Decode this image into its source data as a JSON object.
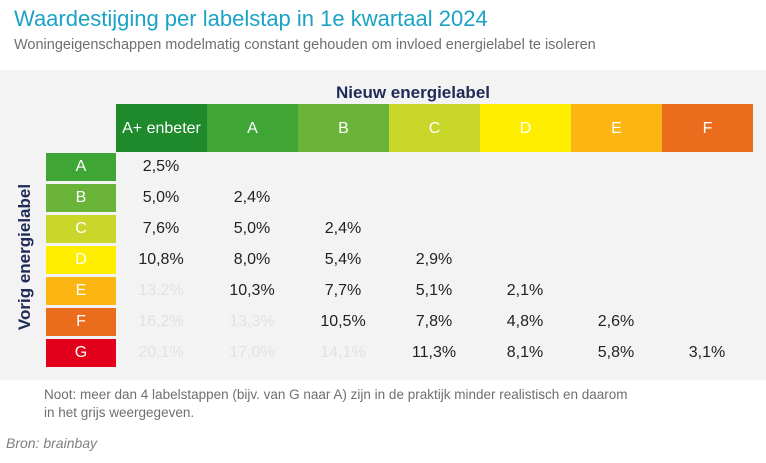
{
  "header": {
    "title": "Waardestijging per labelstap in 1e kwartaal 2024",
    "subtitle": "Woningeigenschappen modelmatig constant gehouden om invloed energielabel te isoleren"
  },
  "chart_data": {
    "type": "table",
    "col_axis_label": "Nieuw energielabel",
    "row_axis_label": "Vorig energielabel",
    "columns": [
      {
        "label": [
          "A+ en",
          "beter"
        ],
        "color": "#1e8a2b",
        "text_color": "#ffffff"
      },
      {
        "label": [
          "A"
        ],
        "color": "#3fa535",
        "text_color": "#ffffff"
      },
      {
        "label": [
          "B"
        ],
        "color": "#6ab43a",
        "text_color": "#ffffff"
      },
      {
        "label": [
          "C"
        ],
        "color": "#c9d72b",
        "text_color": "#ffffff"
      },
      {
        "label": [
          "D"
        ],
        "color": "#ffee00",
        "text_color": "#ffffff"
      },
      {
        "label": [
          "E"
        ],
        "color": "#fbb613",
        "text_color": "#ffffff"
      },
      {
        "label": [
          "F"
        ],
        "color": "#ec6c1d",
        "text_color": "#ffffff"
      }
    ],
    "rows": [
      {
        "label": "A",
        "color": "#3fa535",
        "values": [
          "2,5%",
          "",
          "",
          "",
          "",
          "",
          ""
        ],
        "greyed": [
          false,
          false,
          false,
          false,
          false,
          false,
          false
        ]
      },
      {
        "label": "B",
        "color": "#6ab43a",
        "values": [
          "5,0%",
          "2,4%",
          "",
          "",
          "",
          "",
          ""
        ],
        "greyed": [
          false,
          false,
          false,
          false,
          false,
          false,
          false
        ]
      },
      {
        "label": "C",
        "color": "#c9d72b",
        "values": [
          "7,6%",
          "5,0%",
          "2,4%",
          "",
          "",
          "",
          ""
        ],
        "greyed": [
          false,
          false,
          false,
          false,
          false,
          false,
          false
        ]
      },
      {
        "label": "D",
        "color": "#ffee00",
        "values": [
          "10,8%",
          "8,0%",
          "5,4%",
          "2,9%",
          "",
          "",
          ""
        ],
        "greyed": [
          false,
          false,
          false,
          false,
          false,
          false,
          false
        ]
      },
      {
        "label": "E",
        "color": "#fbb613",
        "values": [
          "13,2%",
          "10,3%",
          "7,7%",
          "5,1%",
          "2,1%",
          "",
          ""
        ],
        "greyed": [
          true,
          false,
          false,
          false,
          false,
          false,
          false
        ]
      },
      {
        "label": "F",
        "color": "#ec6c1d",
        "values": [
          "16,2%",
          "13,3%",
          "10,5%",
          "7,8%",
          "4,8%",
          "2,6%",
          ""
        ],
        "greyed": [
          true,
          true,
          false,
          false,
          false,
          false,
          false
        ]
      },
      {
        "label": "G",
        "color": "#e3001b",
        "values": [
          "20,1%",
          "17,0%",
          "14,1%",
          "11,3%",
          "8,1%",
          "5,8%",
          "3,1%"
        ],
        "greyed": [
          true,
          true,
          true,
          false,
          false,
          false,
          false
        ]
      }
    ]
  },
  "note": {
    "line1": "Noot: meer dan 4 labelstappen (bijv. van G naar A) zijn  in de praktijk minder realistisch en daarom",
    "line2": "in het  grijs weergegeven."
  },
  "source": "Bron: brainbay"
}
